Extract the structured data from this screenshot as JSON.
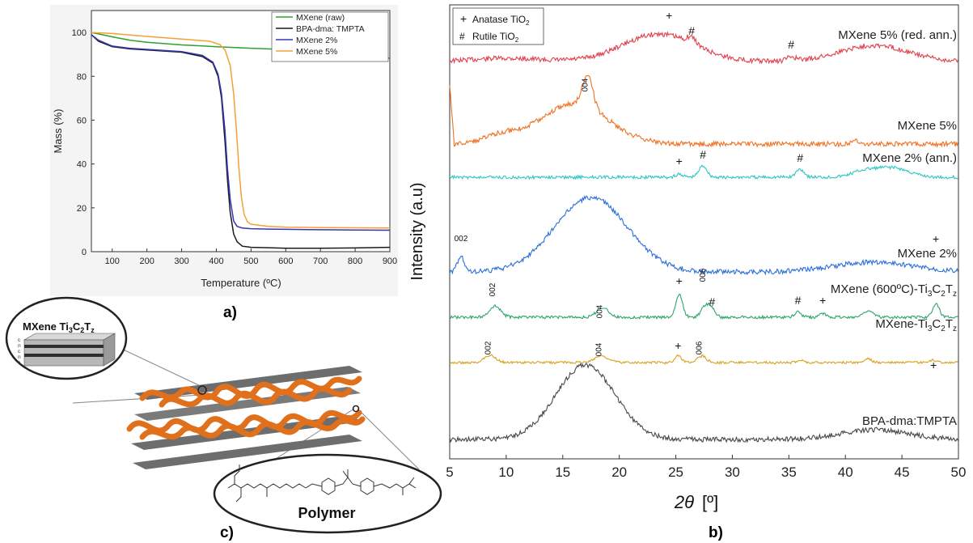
{
  "panel_labels": {
    "a": "a)",
    "b": "b)",
    "c": "c)"
  },
  "colors": {
    "mxene_raw": "#2ea02e",
    "bpa": "#1a1a1a",
    "mxene2": "#3535b8",
    "mxene5": "#f5a033",
    "xrd_red": "#e0404c",
    "xrd_orange": "#f07020",
    "xrd_cyan": "#2cc7c0",
    "xrd_blue": "#2a6fd8",
    "xrd_green": "#2ea56b",
    "xrd_gold": "#d7a21e",
    "xrd_grey": "#474747",
    "polymer": "#e0701c"
  },
  "diagram": {
    "mxene_label": "MXene Ti₃C₂Tᵣ",
    "mxene_label_main": "MXene Ti",
    "mxene_sub3": "3",
    "mxene_c": "C",
    "mxene_sub2": "2",
    "mxene_t": "T",
    "mxene_subz": "z",
    "polymer_label": "Polymer",
    "layer_letters": [
      "c",
      "n",
      "c",
      "n",
      "c"
    ]
  },
  "chart_data": [
    {
      "type": "line",
      "panel": "a",
      "xlabel": "Temperature (ºC)",
      "ylabel": "Mass (%)",
      "xlim": [
        40,
        900
      ],
      "ylim": [
        0,
        110
      ],
      "xticks": [
        100,
        200,
        300,
        400,
        500,
        600,
        700,
        800,
        900
      ],
      "yticks": [
        0,
        20,
        40,
        60,
        80,
        100
      ],
      "legend": "top-right",
      "series": [
        {
          "name": "MXene (raw)",
          "color": "#2ea02e",
          "x": [
            40,
            100,
            150,
            200,
            300,
            400,
            500,
            600,
            700,
            800,
            880,
            900
          ],
          "y": [
            100,
            98.0,
            96.5,
            95.5,
            94.3,
            93.5,
            92.8,
            92.2,
            91.7,
            91.0,
            90.0,
            88.0
          ]
        },
        {
          "name": "BPA-dma: TMPTA",
          "color": "#1a1a1a",
          "x": [
            40,
            60,
            100,
            150,
            200,
            300,
            360,
            390,
            405,
            415,
            425,
            432,
            440,
            450,
            460,
            475,
            500,
            550,
            600,
            700,
            800,
            900
          ],
          "y": [
            99.0,
            96.0,
            93.5,
            92.5,
            92.0,
            91.0,
            89.0,
            86.0,
            80.0,
            70.0,
            50.0,
            33.0,
            18.0,
            8.0,
            4.5,
            2.5,
            2.0,
            1.8,
            1.6,
            1.6,
            1.7,
            2.0
          ]
        },
        {
          "name": "MXene 2%",
          "color": "#3535b8",
          "x": [
            40,
            60,
            100,
            150,
            200,
            300,
            360,
            390,
            405,
            415,
            425,
            432,
            440,
            450,
            460,
            475,
            500,
            550,
            600,
            700,
            800,
            900
          ],
          "y": [
            99.0,
            96.5,
            93.8,
            92.8,
            92.3,
            91.3,
            89.5,
            86.5,
            81.0,
            72.0,
            55.0,
            38.0,
            24.0,
            14.0,
            11.5,
            10.8,
            10.5,
            10.3,
            10.2,
            10.0,
            9.9,
            9.8
          ]
        },
        {
          "name": "MXene 5%",
          "color": "#f5a033",
          "x": [
            40,
            100,
            200,
            300,
            380,
            410,
            425,
            440,
            450,
            458,
            465,
            472,
            480,
            490,
            500,
            550,
            600,
            700,
            800,
            900
          ],
          "y": [
            100,
            99.5,
            98.2,
            97.0,
            96.0,
            94.5,
            92.0,
            85.0,
            72.0,
            55.0,
            38.0,
            25.0,
            17.0,
            13.5,
            12.5,
            11.5,
            11.2,
            11.0,
            10.9,
            10.8
          ]
        }
      ]
    },
    {
      "type": "line",
      "panel": "b",
      "xlabel": "2θ [º]",
      "xlabel_theta": "2θ",
      "xlabel_unit": "[º]",
      "ylabel": "Intensity (a.u)",
      "xlim": [
        5,
        50
      ],
      "xticks": [
        5,
        10,
        15,
        20,
        25,
        30,
        35,
        40,
        45,
        50
      ],
      "legend": "top-left",
      "legend_entries": [
        {
          "symbol": "+",
          "label": "Anatase TiO₂",
          "text": "Anatase TiO",
          "sub": "2"
        },
        {
          "symbol": "#",
          "label": "Rutile TiO₂",
          "text": "Rutile TiO",
          "sub": "2"
        }
      ],
      "series": [
        {
          "name": "MXene 5% (red. ann.)",
          "color": "#e0404c",
          "peaks": [
            [
              24.4,
              "+"
            ],
            [
              26.4,
              "#"
            ],
            [
              35.2,
              "#"
            ]
          ]
        },
        {
          "name": "MXene 5%",
          "color": "#f07020",
          "peaks": [
            [
              17.2,
              "004"
            ]
          ]
        },
        {
          "name": "MXene 2% (ann.)",
          "color": "#2cc7c0",
          "peaks": [
            [
              25.3,
              "+"
            ],
            [
              27.4,
              "#"
            ],
            [
              36.0,
              "#"
            ]
          ]
        },
        {
          "name": "MXene 2%",
          "color": "#2a6fd8",
          "peaks": [
            [
              6.0,
              "002"
            ]
          ]
        },
        {
          "name": "MXene (600ºC)-Ti₃C₂Tᵣ",
          "name_parts": [
            "MXene (600ºC)-Ti",
            "3",
            "C",
            "2",
            "T",
            "z"
          ],
          "color": "#2ea56b",
          "peaks": [
            [
              9.0,
              "002"
            ],
            [
              18.5,
              "004"
            ],
            [
              25.3,
              "+"
            ],
            [
              27.6,
              "006"
            ],
            [
              28.2,
              "#"
            ],
            [
              35.8,
              "#"
            ],
            [
              38.0,
              "+"
            ],
            [
              48.0,
              "+"
            ]
          ]
        },
        {
          "name": "MXene-Ti₃C₂Tᵣ",
          "name_parts": [
            "MXene-Ti",
            "3",
            "C",
            "2",
            "T",
            "z"
          ],
          "color": "#d7a21e",
          "peaks": [
            [
              8.6,
              "002"
            ],
            [
              18.4,
              "004"
            ],
            [
              25.2,
              "+"
            ],
            [
              27.3,
              "006"
            ],
            [
              47.8,
              "+"
            ]
          ]
        },
        {
          "name": "BPA-dma:TMPTA",
          "color": "#474747",
          "peaks": []
        }
      ]
    }
  ]
}
